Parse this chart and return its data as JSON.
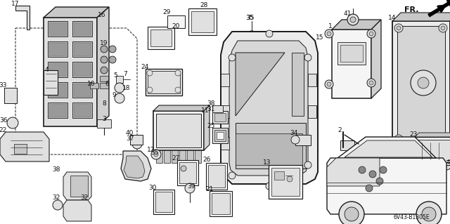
{
  "bg_color": "#ffffff",
  "fig_width": 6.4,
  "fig_height": 3.19,
  "dpi": 100,
  "lc": "#1a1a1a",
  "tc": "#111111",
  "part_code": "6V43-B1305E"
}
